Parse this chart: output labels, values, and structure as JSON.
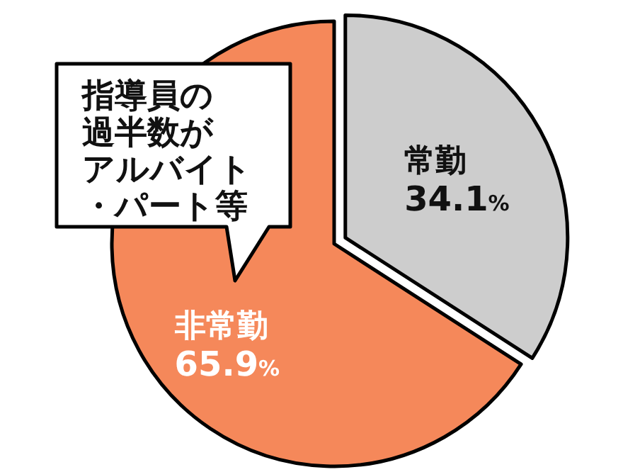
{
  "chart_data": {
    "type": "pie",
    "categories": [
      "常勤",
      "非常勤"
    ],
    "values": [
      34.1,
      65.9
    ],
    "value_labels": [
      "34.1%",
      "65.9%"
    ],
    "colors": [
      "#cdcdcd",
      "#f5885a"
    ],
    "annotations": [
      "指導員の過半数がアルバイト・パート等"
    ]
  }
}
